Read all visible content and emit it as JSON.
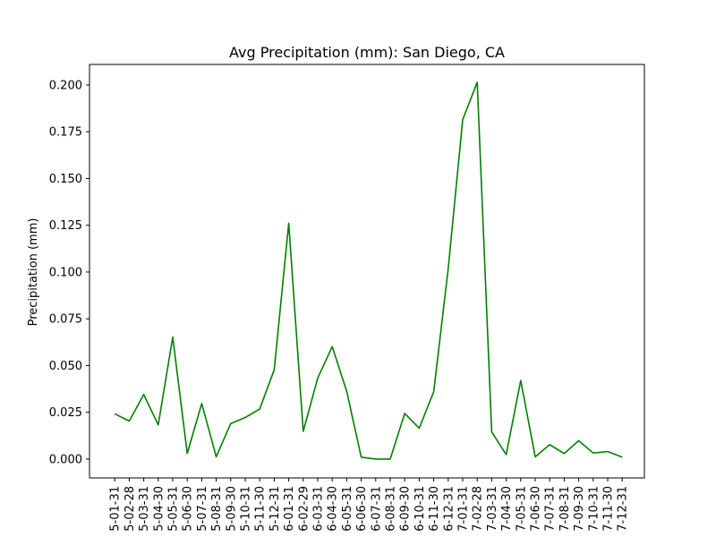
{
  "chart_data": {
    "type": "line",
    "title": "Avg Precipitation (mm): San Diego, CA",
    "xlabel": "",
    "ylabel": "Precipitation (mm)",
    "ylim": [
      -0.0101,
      0.211
    ],
    "yticks": [
      0.0,
      0.025,
      0.05,
      0.075,
      0.1,
      0.125,
      0.15,
      0.175,
      0.2
    ],
    "ytick_labels": [
      "0.000",
      "0.025",
      "0.050",
      "0.075",
      "0.100",
      "0.125",
      "0.150",
      "0.175",
      "0.200"
    ],
    "grid": false,
    "line_color": "#008000",
    "categories": [
      "5-01-31",
      "5-02-28",
      "5-03-31",
      "5-04-30",
      "5-05-31",
      "5-06-30",
      "5-07-31",
      "5-08-31",
      "5-09-30",
      "5-10-31",
      "5-11-30",
      "5-12-31",
      "6-01-31",
      "6-02-29",
      "6-03-31",
      "6-04-30",
      "6-05-31",
      "6-06-30",
      "6-07-31",
      "6-08-31",
      "6-09-30",
      "6-10-31",
      "6-11-30",
      "6-12-31",
      "7-01-31",
      "7-02-28",
      "7-03-31",
      "7-04-30",
      "7-05-31",
      "7-06-30",
      "7-07-31",
      "7-08-31",
      "7-09-30",
      "7-10-31",
      "7-11-30",
      "7-12-31"
    ],
    "values": [
      0.0242,
      0.0203,
      0.0345,
      0.0183,
      0.0652,
      0.003,
      0.0297,
      0.0012,
      0.019,
      0.0222,
      0.0268,
      0.0477,
      0.126,
      0.0148,
      0.0433,
      0.0601,
      0.0362,
      0.001,
      0.0,
      0.0,
      0.0244,
      0.0165,
      0.036,
      0.1018,
      0.1815,
      0.2015,
      0.0145,
      0.0024,
      0.042,
      0.0012,
      0.0077,
      0.0029,
      0.0098,
      0.0032,
      0.004,
      0.001
    ]
  }
}
